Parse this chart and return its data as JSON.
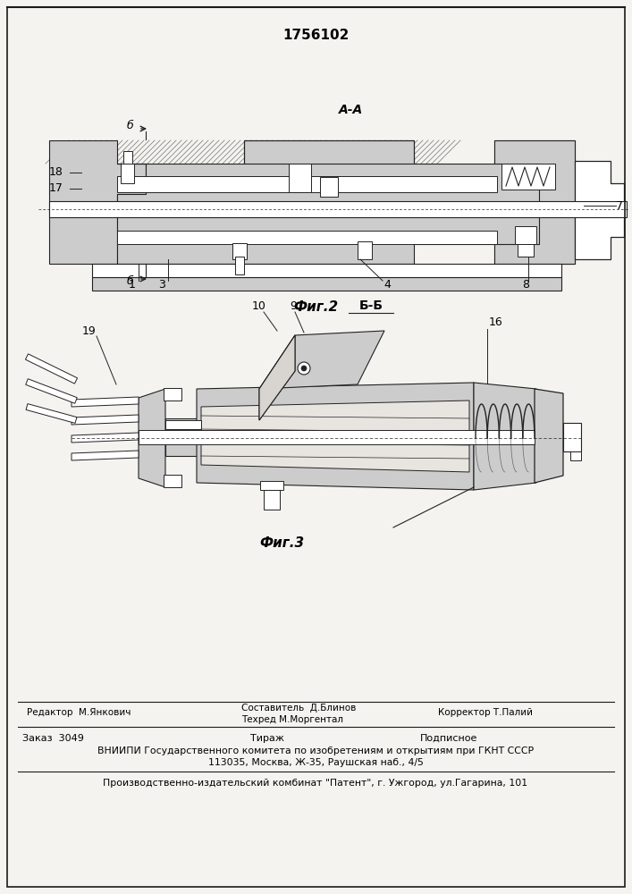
{
  "patent_number": "1756102",
  "bg_color": "#f5f3f0",
  "fig2_label": "Фиг.2",
  "fig3_label": "Фиг.3",
  "section_aa": "А-А",
  "section_bb": "Б-Б",
  "editor_line": "Редактор  М.Янкович",
  "composer_line1": "Составитель  Д.Блинов",
  "composer_line2": "Техред М.Моргентал",
  "corrector_line": "Корректор Т.Палий",
  "order_line": "Заказ  3049",
  "tirazh_line": "Тираж",
  "podpisnoe_line": "Подписное",
  "vniipii_line1": "ВНИИПИ Государственного комитета по изобретениям и открытиям при ГКНТ СССР",
  "vniipii_line2": "113035, Москва, Ж-35, Раушская наб., 4/5",
  "production_line": "Производственно-издательский комбинат \"Патент\", г. Ужгород, ул.Гагарина, 101",
  "text_color": "#000000",
  "line_color": "#1a1a1a",
  "draw_color": "#222222",
  "hatch_gray": "#888888",
  "mid_gray": "#aaaaaa",
  "light_gray": "#cccccc",
  "white": "#ffffff"
}
